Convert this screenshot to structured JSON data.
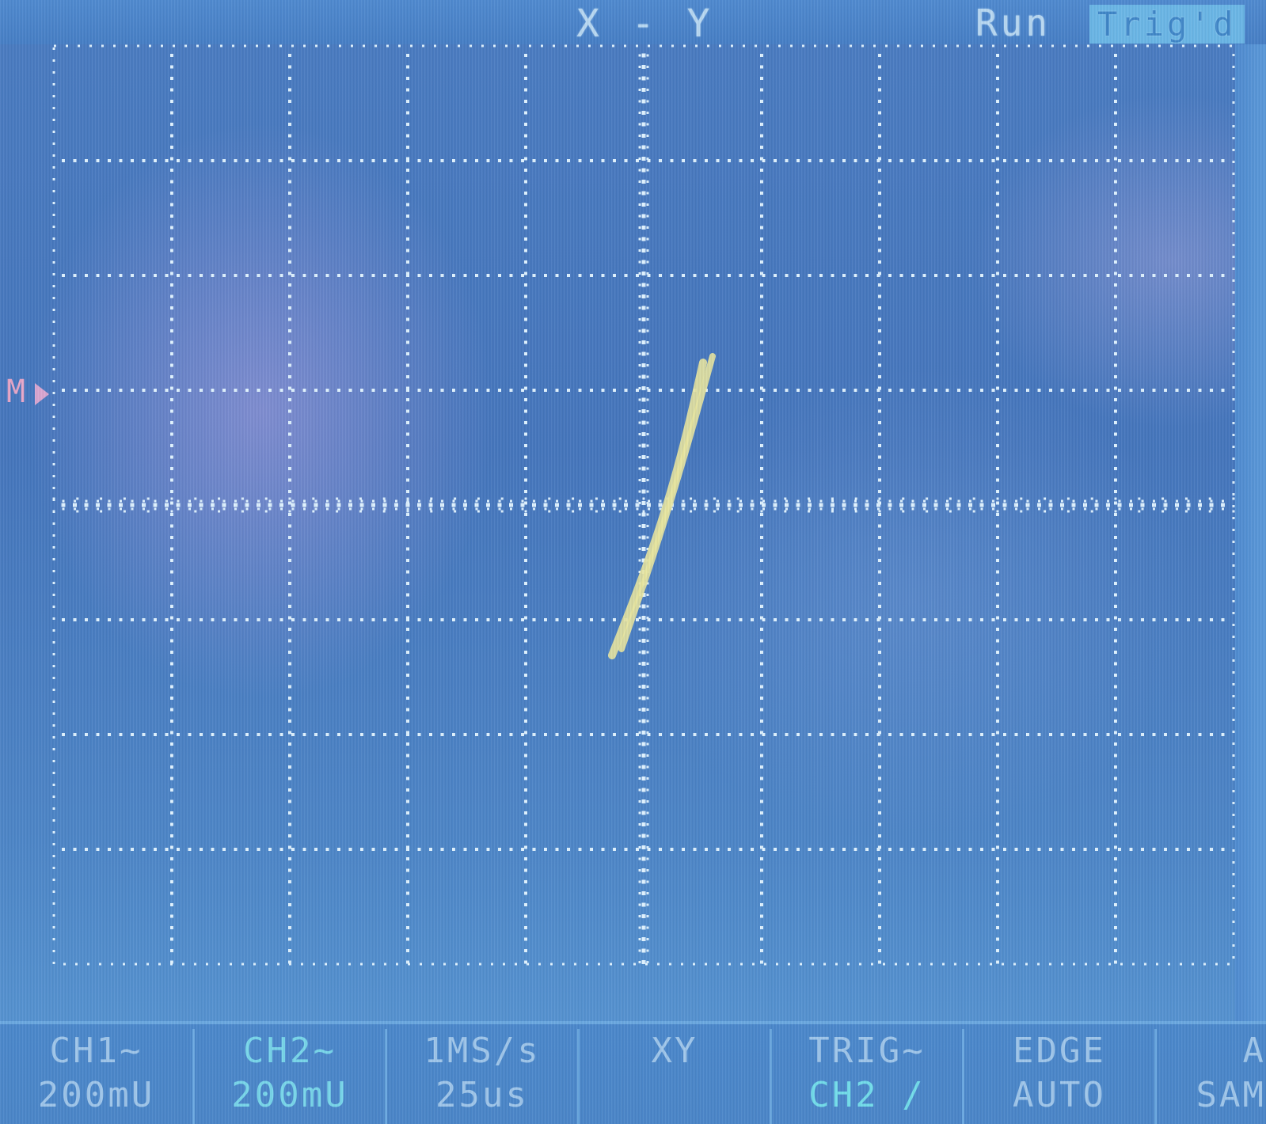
{
  "header": {
    "mode": "X - Y",
    "run_status": "Run",
    "trigger_state": "Trig'd"
  },
  "marker": {
    "label": "M"
  },
  "menu": [
    {
      "line1": "CH1~",
      "line2": "200mU"
    },
    {
      "line1": "CH2~",
      "line2": "200mU"
    },
    {
      "line1": "1MS/s",
      "line2": "25us"
    },
    {
      "line1": "XY",
      "line2": ""
    },
    {
      "line1": "TRIG~",
      "line2": "CH2 /"
    },
    {
      "line1": "EDGE",
      "line2": "AUTO"
    },
    {
      "line1": "A",
      "line2": "SAM"
    }
  ],
  "colors": {
    "background": "#4576bd",
    "grid": "#dff2ff",
    "trace": "#e8e6a0",
    "lcd_text": "#b8d8f2"
  }
}
